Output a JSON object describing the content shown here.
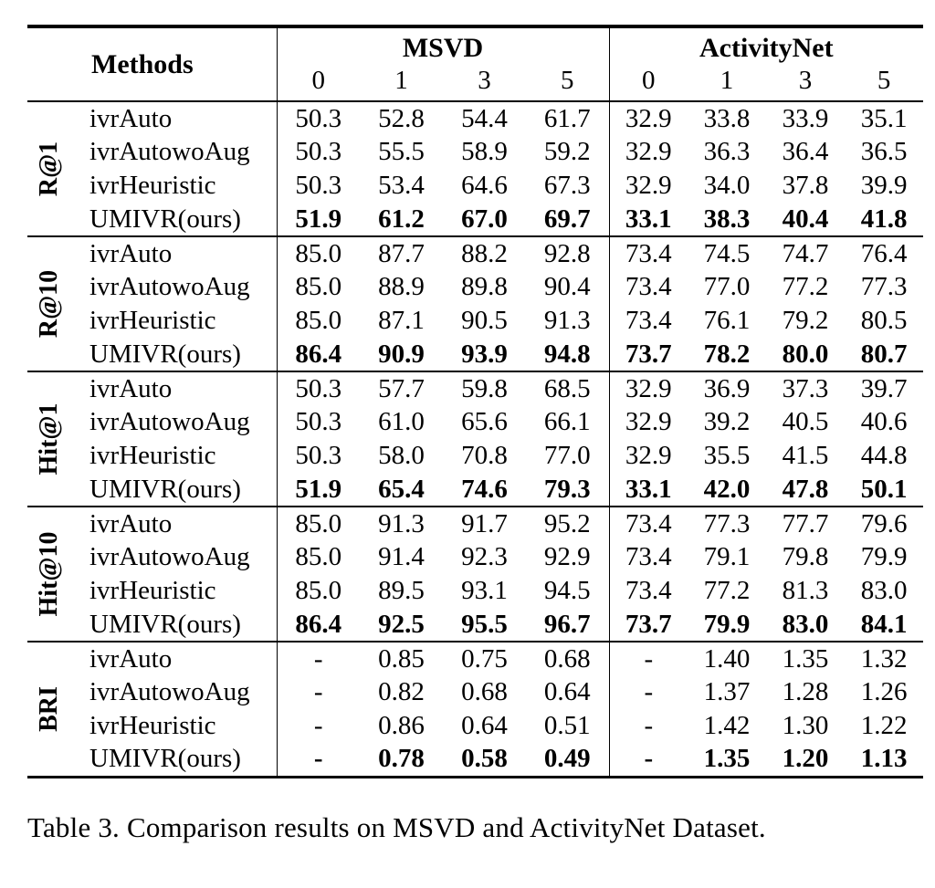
{
  "table": {
    "header": {
      "methods_label": "Methods",
      "group_msvd": "MSVD",
      "group_activitynet": "ActivityNet",
      "subcols_msvd": [
        "0",
        "1",
        "3",
        "5"
      ],
      "subcols_activitynet": [
        "0",
        "1",
        "3",
        "5"
      ]
    },
    "sections": [
      {
        "label": "R@1",
        "rows": [
          {
            "method": "ivrAuto",
            "msvd": [
              "50.3",
              "52.8",
              "54.4",
              "61.7"
            ],
            "activitynet": [
              "32.9",
              "33.8",
              "33.9",
              "35.1"
            ]
          },
          {
            "method": "ivrAutowoAug",
            "msvd": [
              "50.3",
              "55.5",
              "58.9",
              "59.2"
            ],
            "activitynet": [
              "32.9",
              "36.3",
              "36.4",
              "36.5"
            ]
          },
          {
            "method": "ivrHeuristic",
            "msvd": [
              "50.3",
              "53.4",
              "64.6",
              "67.3"
            ],
            "activitynet": [
              "32.9",
              "34.0",
              "37.8",
              "39.9"
            ]
          },
          {
            "method": "UMIVR(ours)",
            "msvd": [
              "51.9",
              "61.2",
              "67.0",
              "69.7"
            ],
            "activitynet": [
              "33.1",
              "38.3",
              "40.4",
              "41.8"
            ]
          }
        ]
      },
      {
        "label": "R@10",
        "rows": [
          {
            "method": "ivrAuto",
            "msvd": [
              "85.0",
              "87.7",
              "88.2",
              "92.8"
            ],
            "activitynet": [
              "73.4",
              "74.5",
              "74.7",
              "76.4"
            ]
          },
          {
            "method": "ivrAutowoAug",
            "msvd": [
              "85.0",
              "88.9",
              "89.8",
              "90.4"
            ],
            "activitynet": [
              "73.4",
              "77.0",
              "77.2",
              "77.3"
            ]
          },
          {
            "method": "ivrHeuristic",
            "msvd": [
              "85.0",
              "87.1",
              "90.5",
              "91.3"
            ],
            "activitynet": [
              "73.4",
              "76.1",
              "79.2",
              "80.5"
            ]
          },
          {
            "method": "UMIVR(ours)",
            "msvd": [
              "86.4",
              "90.9",
              "93.9",
              "94.8"
            ],
            "activitynet": [
              "73.7",
              "78.2",
              "80.0",
              "80.7"
            ]
          }
        ]
      },
      {
        "label": "Hit@1",
        "rows": [
          {
            "method": "ivrAuto",
            "msvd": [
              "50.3",
              "57.7",
              "59.8",
              "68.5"
            ],
            "activitynet": [
              "32.9",
              "36.9",
              "37.3",
              "39.7"
            ]
          },
          {
            "method": "ivrAutowoAug",
            "msvd": [
              "50.3",
              "61.0",
              "65.6",
              "66.1"
            ],
            "activitynet": [
              "32.9",
              "39.2",
              "40.5",
              "40.6"
            ]
          },
          {
            "method": "ivrHeuristic",
            "msvd": [
              "50.3",
              "58.0",
              "70.8",
              "77.0"
            ],
            "activitynet": [
              "32.9",
              "35.5",
              "41.5",
              "44.8"
            ]
          },
          {
            "method": "UMIVR(ours)",
            "msvd": [
              "51.9",
              "65.4",
              "74.6",
              "79.3"
            ],
            "activitynet": [
              "33.1",
              "42.0",
              "47.8",
              "50.1"
            ]
          }
        ]
      },
      {
        "label": "Hit@10",
        "rows": [
          {
            "method": "ivrAuto",
            "msvd": [
              "85.0",
              "91.3",
              "91.7",
              "95.2"
            ],
            "activitynet": [
              "73.4",
              "77.3",
              "77.7",
              "79.6"
            ]
          },
          {
            "method": "ivrAutowoAug",
            "msvd": [
              "85.0",
              "91.4",
              "92.3",
              "92.9"
            ],
            "activitynet": [
              "73.4",
              "79.1",
              "79.8",
              "79.9"
            ]
          },
          {
            "method": "ivrHeuristic",
            "msvd": [
              "85.0",
              "89.5",
              "93.1",
              "94.5"
            ],
            "activitynet": [
              "73.4",
              "77.2",
              "81.3",
              "83.0"
            ]
          },
          {
            "method": "UMIVR(ours)",
            "msvd": [
              "86.4",
              "92.5",
              "95.5",
              "96.7"
            ],
            "activitynet": [
              "73.7",
              "79.9",
              "83.0",
              "84.1"
            ]
          }
        ]
      },
      {
        "label": "BRI",
        "rows": [
          {
            "method": "ivrAuto",
            "msvd": [
              "-",
              "0.85",
              "0.75",
              "0.68"
            ],
            "activitynet": [
              "-",
              "1.40",
              "1.35",
              "1.32"
            ]
          },
          {
            "method": "ivrAutowoAug",
            "msvd": [
              "-",
              "0.82",
              "0.68",
              "0.64"
            ],
            "activitynet": [
              "-",
              "1.37",
              "1.28",
              "1.26"
            ]
          },
          {
            "method": "ivrHeuristic",
            "msvd": [
              "-",
              "0.86",
              "0.64",
              "0.51"
            ],
            "activitynet": [
              "-",
              "1.42",
              "1.30",
              "1.22"
            ]
          },
          {
            "method": "UMIVR(ours)",
            "msvd": [
              "-",
              "0.78",
              "0.58",
              "0.49"
            ],
            "activitynet": [
              "-",
              "1.35",
              "1.20",
              "1.13"
            ]
          }
        ]
      }
    ],
    "caption": "Table 3. Comparison results on MSVD and ActivityNet Dataset."
  }
}
